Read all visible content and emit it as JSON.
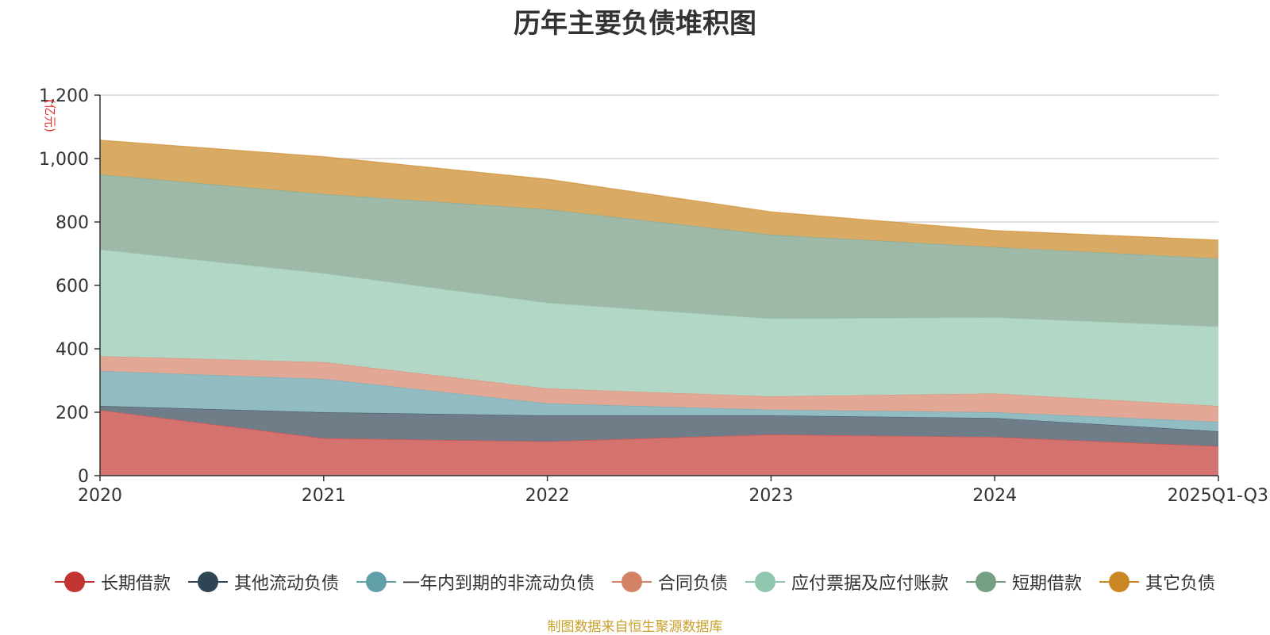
{
  "chart_data": {
    "type": "area",
    "stacked": true,
    "title": "历年主要负债堆积图",
    "unit": "(亿元)",
    "categories": [
      "2020",
      "2021",
      "2022",
      "2023",
      "2024",
      "2025Q1-Q3"
    ],
    "ylim": [
      0,
      1200
    ],
    "yticks": [
      0,
      200,
      400,
      600,
      800,
      1000,
      1200
    ],
    "ytick_labels": [
      "0",
      "200",
      "400",
      "600",
      "800",
      "1,000",
      "1,200"
    ],
    "grid": true,
    "legend_position": "bottom",
    "series": [
      {
        "name": "长期借款",
        "color": "#c23531",
        "fill": "#d47270",
        "values": [
          207,
          118,
          108,
          130,
          122,
          93
        ]
      },
      {
        "name": "其他流动负债",
        "color": "#2f4554",
        "fill": "#6e7d87",
        "values": [
          13,
          82,
          82,
          60,
          60,
          47
        ]
      },
      {
        "name": "一年内到期的非流动负债",
        "color": "#61a0a8",
        "fill": "#90bcc2",
        "values": [
          110,
          105,
          38,
          18,
          18,
          30
        ]
      },
      {
        "name": "合同负债",
        "color": "#d48265",
        "fill": "#e2a895",
        "values": [
          47,
          53,
          47,
          42,
          59,
          50
        ]
      },
      {
        "name": "应付票据及应付账款",
        "color": "#91c7ae",
        "fill": "#b2d7c6",
        "values": [
          336,
          280,
          270,
          245,
          240,
          250
        ]
      },
      {
        "name": "短期借款",
        "color": "#749f83",
        "fill": "#9eb9a7",
        "values": [
          237,
          250,
          295,
          265,
          222,
          215
        ]
      },
      {
        "name": "其它负债",
        "color": "#ca8622",
        "fill": "#d9aa64",
        "values": [
          108,
          118,
          95,
          72,
          52,
          58
        ]
      }
    ]
  },
  "source_note": "制图数据来自恒生聚源数据库"
}
